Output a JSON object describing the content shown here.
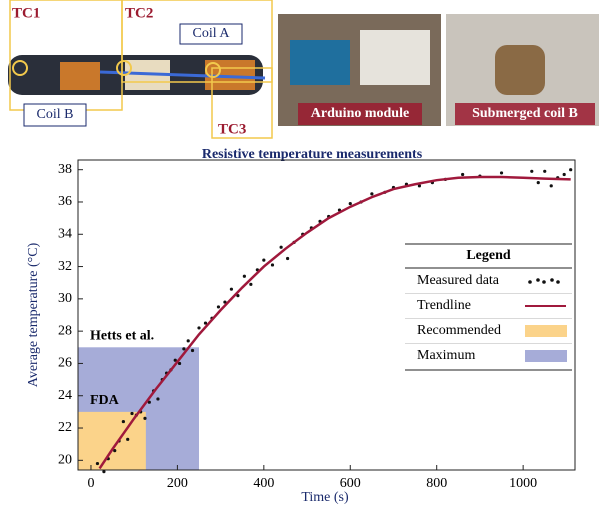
{
  "photo_labels": [
    "TC1",
    "TC2",
    "TC3",
    "Coil A",
    "Coil B",
    "Arduino module",
    "Submerged coil B"
  ],
  "chart_data": {
    "type": "line",
    "title": "Resistive temperature measurements",
    "xlabel": "Time (s)",
    "ylabel": "Average temperature (°C)",
    "xlim": [
      -30,
      1120
    ],
    "ylim": [
      19.4,
      38.6
    ],
    "xticks": [
      0,
      200,
      400,
      600,
      800,
      1000
    ],
    "yticks": [
      20,
      22,
      24,
      26,
      28,
      30,
      32,
      34,
      36,
      38
    ],
    "grid": false,
    "legend_title": "Legend",
    "legend_position": "right",
    "series": [
      {
        "name": "Measured data",
        "type": "scatter",
        "color": "#111111",
        "x": [
          15,
          30,
          40,
          55,
          65,
          75,
          85,
          95,
          105,
          115,
          125,
          135,
          145,
          155,
          165,
          175,
          185,
          195,
          205,
          215,
          225,
          235,
          250,
          265,
          280,
          295,
          310,
          325,
          340,
          355,
          370,
          385,
          400,
          420,
          440,
          455,
          470,
          490,
          510,
          530,
          550,
          575,
          600,
          625,
          650,
          680,
          700,
          730,
          760,
          790,
          820,
          860,
          900,
          950,
          1020,
          1035,
          1050,
          1065,
          1080,
          1095,
          1110
        ],
        "values": [
          19.8,
          19.3,
          20.1,
          20.6,
          21.2,
          22.4,
          21.3,
          22.9,
          22.8,
          23.0,
          22.6,
          23.6,
          24.3,
          23.8,
          25.0,
          25.4,
          25.6,
          26.2,
          26.0,
          26.9,
          27.4,
          26.8,
          28.2,
          28.5,
          28.8,
          29.5,
          29.8,
          30.6,
          30.2,
          31.4,
          30.9,
          31.8,
          32.4,
          32.1,
          33.2,
          32.5,
          33.5,
          34.0,
          34.4,
          34.8,
          35.1,
          35.5,
          35.9,
          36.0,
          36.5,
          36.6,
          36.9,
          37.1,
          37.0,
          37.2,
          37.4,
          37.7,
          37.6,
          37.8,
          37.9,
          37.2,
          37.9,
          37.0,
          37.5,
          37.7,
          38.0
        ]
      },
      {
        "name": "Trendline",
        "type": "line",
        "color": "#a0193c",
        "x": [
          20,
          50,
          100,
          150,
          200,
          250,
          300,
          350,
          400,
          450,
          500,
          550,
          600,
          650,
          700,
          750,
          800,
          850,
          900,
          950,
          1000,
          1050,
          1110
        ],
        "values": [
          19.5,
          20.7,
          22.6,
          24.4,
          26.1,
          27.8,
          29.3,
          30.7,
          32.0,
          33.1,
          34.1,
          35.0,
          35.7,
          36.3,
          36.8,
          37.1,
          37.35,
          37.5,
          37.55,
          37.55,
          37.5,
          37.45,
          37.4
        ]
      }
    ],
    "regions": [
      {
        "name": "Recommended",
        "color": "#fbd38a",
        "x_end": 127,
        "y_end": 23,
        "annotation": "FDA"
      },
      {
        "name": "Maximum",
        "color": "#a6acd8",
        "x_end": 250,
        "y_end": 27,
        "annotation": "Hetts et al."
      }
    ]
  }
}
